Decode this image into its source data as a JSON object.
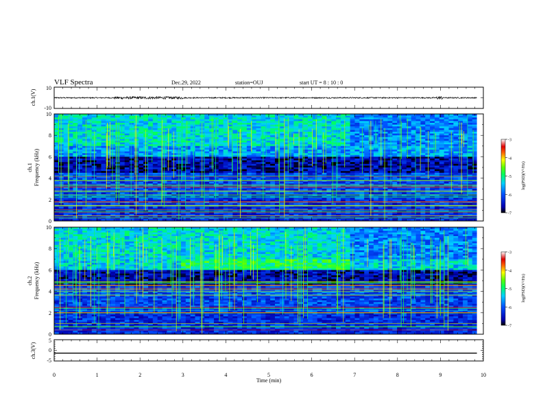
{
  "header": {
    "title": "VLF Spectra",
    "date": "Dec.29, 2022",
    "station": "station=OUJ",
    "start": "start UT =  8 : 10 : 0"
  },
  "chart_data": [
    {
      "type": "line",
      "ylabel": "ch.1(V)",
      "ylim": [
        -10,
        10
      ],
      "y_ticks": [
        "10",
        "-10"
      ],
      "xlim": [
        0,
        10
      ]
    },
    {
      "type": "heatmap",
      "ylabel_line1": "ch.1",
      "ylabel_line2": "Frequency (kHz)",
      "ylim": [
        0,
        10
      ],
      "y_ticks": [
        "0",
        "2",
        "4",
        "6",
        "8",
        "10"
      ],
      "xlim": [
        0,
        10
      ],
      "colorbar": {
        "label": "log(PSD)(V²/Hz)",
        "range": [
          -7,
          -3
        ],
        "ticks": [
          "-3",
          "-4",
          "-5",
          "-6",
          "-7"
        ]
      }
    },
    {
      "type": "heatmap",
      "ylabel_line1": "ch.2",
      "ylabel_line2": "Frequency (kHz)",
      "ylim": [
        0,
        10
      ],
      "y_ticks": [
        "0",
        "2",
        "4",
        "6",
        "8",
        "10"
      ],
      "xlim": [
        0,
        10
      ],
      "colorbar": {
        "label": "log(PSD)(V²/Hz)",
        "range": [
          -7,
          -3
        ],
        "ticks": [
          "-3",
          "-4",
          "-5",
          "-6",
          "-7"
        ]
      }
    },
    {
      "type": "line",
      "ylabel": "ch.3(V)",
      "ylim": [
        -5,
        5
      ],
      "y_ticks": [
        "5",
        "0",
        "-5"
      ],
      "xlim": [
        0,
        10
      ],
      "xlabel": "Time (min)",
      "x_ticks": [
        "0",
        "1",
        "2",
        "3",
        "4",
        "5",
        "6",
        "7",
        "8",
        "9",
        "10"
      ],
      "series": [
        {
          "x": [
            0,
            9.85
          ],
          "y": [
            -1.3,
            -1.3
          ]
        }
      ]
    }
  ]
}
